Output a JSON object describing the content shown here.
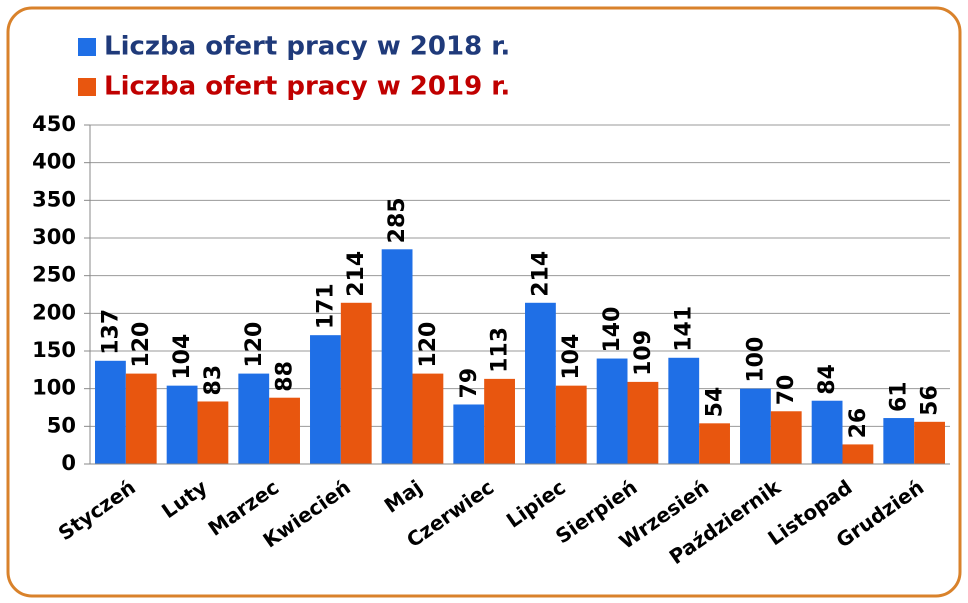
{
  "chart_data": {
    "type": "bar",
    "categories": [
      "Styczeń",
      "Luty",
      "Marzec",
      "Kwiecień",
      "Maj",
      "Czerwiec",
      "Lipiec",
      "Sierpień",
      "Wrzesień",
      "Październik",
      "Listopad",
      "Grudzień"
    ],
    "series": [
      {
        "name": "Liczba ofert pracy w 2018 r.",
        "color": "#1f6fe6",
        "values": [
          137,
          104,
          120,
          171,
          285,
          79,
          214,
          140,
          141,
          100,
          84,
          61
        ]
      },
      {
        "name": "Liczba ofert pracy w 2019 r.",
        "color": "#e8560f",
        "values": [
          120,
          83,
          88,
          214,
          120,
          113,
          104,
          109,
          54,
          70,
          26,
          56
        ]
      }
    ],
    "ylim": [
      0,
      450
    ],
    "yticks": [
      0,
      50,
      100,
      150,
      200,
      250,
      300,
      350,
      400,
      450
    ],
    "grid": true,
    "legend": "top-left"
  }
}
